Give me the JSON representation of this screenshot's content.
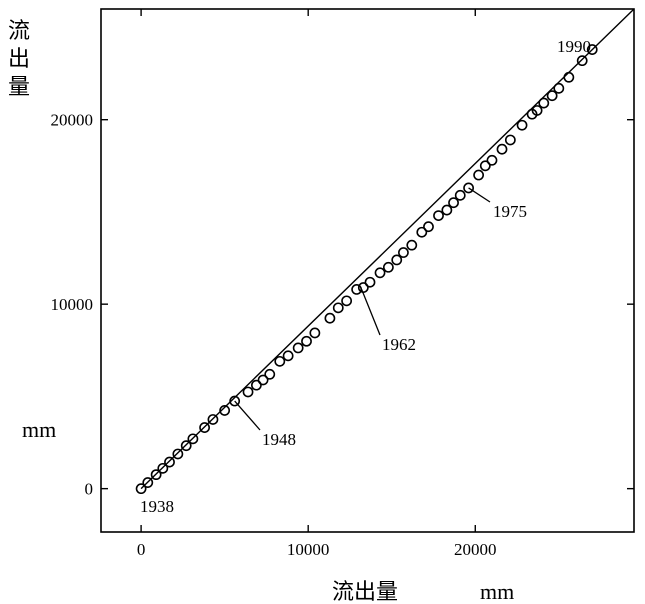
{
  "chart_data": {
    "type": "scatter",
    "ylabel_chars": [
      "流",
      "出",
      "量"
    ],
    "ylabel_unit": "mm",
    "xlabel": "流出量",
    "xlabel_unit": "mm",
    "xlim": [
      -2400,
      29500
    ],
    "ylim": [
      -2350,
      26000
    ],
    "x_ticks": [
      0,
      10000,
      20000
    ],
    "y_ticks": [
      0,
      10000,
      20000
    ],
    "x_tick_labels": [
      "0",
      "10000",
      "20000"
    ],
    "y_tick_labels": [
      "0",
      "10000",
      "20000"
    ],
    "reference_line": {
      "from": [
        0,
        0
      ],
      "to": [
        29500,
        26000
      ]
    },
    "annotations": [
      {
        "text": "1938",
        "point": [
          0,
          0
        ]
      },
      {
        "text": "1948",
        "point": [
          5600,
          4750
        ]
      },
      {
        "text": "1962",
        "point": [
          13200,
          10800
        ]
      },
      {
        "text": "1975",
        "point": [
          19600,
          16300
        ]
      },
      {
        "text": "1990",
        "point": [
          27000,
          23800
        ]
      }
    ],
    "points": [
      [
        0,
        0
      ],
      [
        400,
        330
      ],
      [
        900,
        760
      ],
      [
        1300,
        1100
      ],
      [
        1700,
        1440
      ],
      [
        2200,
        1880
      ],
      [
        2700,
        2330
      ],
      [
        3100,
        2700
      ],
      [
        3800,
        3310
      ],
      [
        4300,
        3750
      ],
      [
        5000,
        4240
      ],
      [
        5600,
        4750
      ],
      [
        6400,
        5240
      ],
      [
        6900,
        5610
      ],
      [
        7300,
        5890
      ],
      [
        7700,
        6200
      ],
      [
        8300,
        6900
      ],
      [
        8800,
        7200
      ],
      [
        9400,
        7630
      ],
      [
        9900,
        7990
      ],
      [
        10400,
        8440
      ],
      [
        11300,
        9240
      ],
      [
        11800,
        9800
      ],
      [
        12300,
        10180
      ],
      [
        12900,
        10800
      ],
      [
        13300,
        10900
      ],
      [
        13700,
        11190
      ],
      [
        14300,
        11700
      ],
      [
        14800,
        12000
      ],
      [
        15300,
        12400
      ],
      [
        15700,
        12800
      ],
      [
        16200,
        13200
      ],
      [
        16800,
        13900
      ],
      [
        17200,
        14200
      ],
      [
        17800,
        14800
      ],
      [
        18300,
        15100
      ],
      [
        18700,
        15500
      ],
      [
        19100,
        15900
      ],
      [
        19600,
        16300
      ],
      [
        20200,
        17000
      ],
      [
        20600,
        17500
      ],
      [
        21000,
        17800
      ],
      [
        21600,
        18400
      ],
      [
        22100,
        18900
      ],
      [
        22800,
        19700
      ],
      [
        23400,
        20300
      ],
      [
        23700,
        20500
      ],
      [
        24100,
        20900
      ],
      [
        24600,
        21300
      ],
      [
        25000,
        21700
      ],
      [
        25600,
        22300
      ],
      [
        26400,
        23200
      ],
      [
        27000,
        23800
      ]
    ]
  }
}
